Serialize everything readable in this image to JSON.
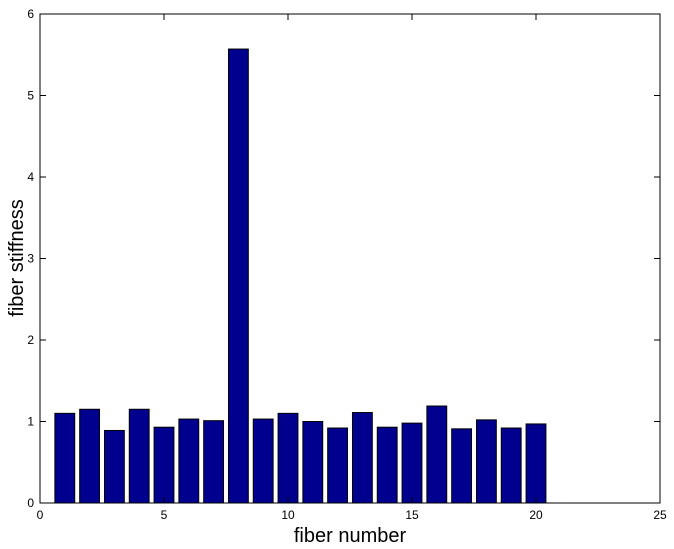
{
  "chart_data": {
    "type": "bar",
    "title": "",
    "xlabel": "fiber number",
    "ylabel": "fiber stiffness",
    "xlim": [
      0,
      25
    ],
    "ylim": [
      0,
      6
    ],
    "xticks": [
      0,
      5,
      10,
      15,
      20,
      25
    ],
    "yticks": [
      0,
      1,
      2,
      3,
      4,
      5,
      6
    ],
    "grid": false,
    "bar_color": "#00008f",
    "x": [
      1,
      2,
      3,
      4,
      5,
      6,
      7,
      8,
      9,
      10,
      11,
      12,
      13,
      14,
      15,
      16,
      17,
      18,
      19,
      20
    ],
    "values": [
      1.1,
      1.15,
      0.89,
      1.15,
      0.93,
      1.03,
      1.01,
      5.57,
      1.03,
      1.1,
      1.0,
      0.92,
      1.11,
      0.93,
      0.98,
      1.19,
      0.91,
      1.02,
      0.92,
      0.97
    ]
  }
}
